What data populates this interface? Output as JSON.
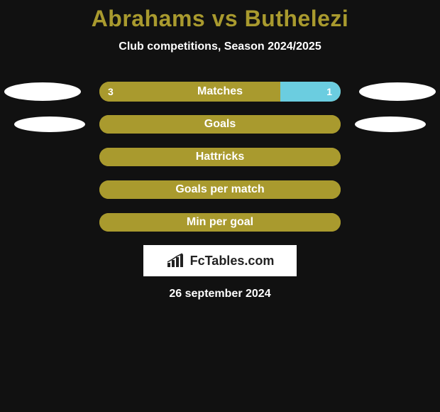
{
  "title": "Abrahams vs Buthelezi",
  "subtitle": "Club competitions, Season 2024/2025",
  "date": "26 september 2024",
  "logo_text": "FcTables.com",
  "colors": {
    "background": "#111111",
    "title": "#a99a2e",
    "text": "#ffffff",
    "bar_left": "#a99a2e",
    "bar_right": "#6bcde0",
    "bar_empty": "#a99a2e",
    "oval": "#ffffff",
    "logo_bg": "#ffffff",
    "logo_text": "#222222"
  },
  "rows": [
    {
      "label": "Matches",
      "left_value": "3",
      "right_value": "1",
      "left_pct": 75,
      "right_pct": 25,
      "show_ovals": true,
      "oval_size": "large",
      "bar_size": "large",
      "show_values": true
    },
    {
      "label": "Goals",
      "left_value": "",
      "right_value": "",
      "left_pct": 100,
      "right_pct": 0,
      "show_ovals": true,
      "oval_size": "small",
      "bar_size": "small",
      "show_values": false
    },
    {
      "label": "Hattricks",
      "left_value": "",
      "right_value": "",
      "left_pct": 100,
      "right_pct": 0,
      "show_ovals": false,
      "oval_size": "small",
      "bar_size": "small",
      "show_values": false
    },
    {
      "label": "Goals per match",
      "left_value": "",
      "right_value": "",
      "left_pct": 100,
      "right_pct": 0,
      "show_ovals": false,
      "oval_size": "small",
      "bar_size": "small",
      "show_values": false
    },
    {
      "label": "Min per goal",
      "left_value": "",
      "right_value": "",
      "left_pct": 100,
      "right_pct": 0,
      "show_ovals": false,
      "oval_size": "small",
      "bar_size": "small",
      "show_values": false
    }
  ]
}
